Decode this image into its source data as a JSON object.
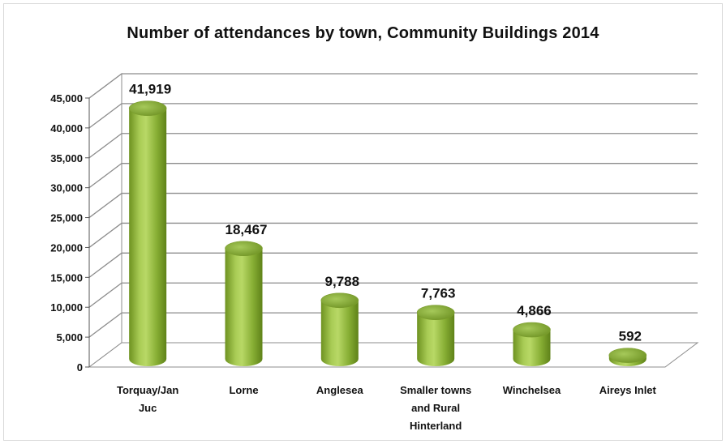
{
  "chart_data": {
    "type": "bar",
    "title": "Number of attendances by town, Community Buildings 2014",
    "categories": [
      [
        "Torquay/Jan",
        "Juc"
      ],
      [
        "Lorne"
      ],
      [
        "Anglesea"
      ],
      [
        "Smaller towns",
        "and Rural",
        "Hinterland"
      ],
      [
        "Winchelsea"
      ],
      [
        "Aireys Inlet"
      ]
    ],
    "values": [
      41919,
      18467,
      9788,
      7763,
      4866,
      592
    ],
    "value_labels": [
      "41,919",
      "18,467",
      "9,788",
      "7,763",
      "4,866",
      "592"
    ],
    "ylim": [
      0,
      45000
    ],
    "yticks": [
      0,
      5000,
      10000,
      15000,
      20000,
      25000,
      30000,
      35000,
      40000,
      45000
    ],
    "ytick_labels": [
      "0",
      "5,000",
      "10,000",
      "15,000",
      "20,000",
      "25,000",
      "30,000",
      "35,000",
      "40,000",
      "45,000"
    ],
    "grid": true,
    "style": "3d-cylinder",
    "bar_color": "#8db33a"
  }
}
